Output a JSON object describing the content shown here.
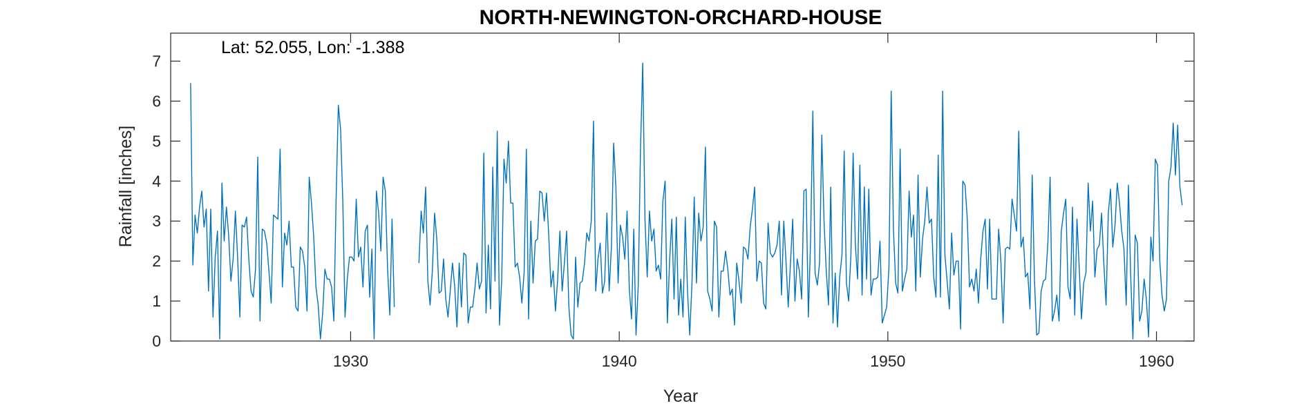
{
  "chart_data": {
    "type": "line",
    "title": "NORTH-NEWINGTON-ORCHARD-HOUSE",
    "xlabel": "Year",
    "ylabel": "Rainfall [inches]",
    "annotation": "Lat: 52.055, Lon: -1.388",
    "xlim": [
      1923.3,
      1961.4
    ],
    "ylim": [
      0,
      7.7
    ],
    "xticks": [
      1930,
      1940,
      1950,
      1960
    ],
    "yticks": [
      0,
      1,
      2,
      3,
      4,
      5,
      6,
      7
    ],
    "grid": false,
    "colors": {
      "line": "#0072BD",
      "axis": "#262626"
    },
    "series": [
      {
        "start": 1924.042,
        "step": 0.08333,
        "values": [
          6.45,
          1.9,
          3.15,
          2.7,
          3.35,
          3.75,
          2.85,
          3.3,
          1.25,
          3.3,
          0.6,
          2.1,
          2.75,
          0.05,
          3.95,
          2.5,
          3.35,
          2.65,
          1.5,
          2.05,
          3.25,
          2.1,
          0.6,
          2.9,
          2.85,
          3.1,
          2.05,
          1.25,
          1.1,
          1.8,
          4.6,
          0.5,
          2.8,
          2.75,
          2.45,
          1.75,
          0.95,
          3.15,
          3.1,
          3.05,
          4.8,
          1.35,
          2.7,
          2.4,
          3.0,
          1.85,
          1.85,
          0.85,
          0.75,
          2.35,
          2.25,
          1.85,
          0.75,
          4.1,
          3.45,
          2.6,
          1.35,
          0.9,
          0.05,
          0.7,
          1.8,
          1.55,
          1.55,
          1.35,
          0.5,
          3.55,
          5.9,
          5.3,
          3.5,
          0.6,
          1.55,
          2.1,
          2.1,
          2.0,
          3.55,
          2.1,
          2.35,
          1.35,
          2.75,
          2.9,
          1.1,
          2.3,
          0.05,
          3.75,
          3.2,
          2.25,
          4.1,
          3.75,
          1.8,
          0.65,
          3.05,
          0.85,
          null,
          null,
          null,
          null,
          null,
          null,
          null,
          null,
          null,
          null,
          1.95,
          3.25,
          2.7,
          3.85,
          1.5,
          0.9,
          1.75,
          3.2,
          2.55,
          1.2,
          1.25,
          2.05,
          1.05,
          0.6,
          1.25,
          1.95,
          1.35,
          0.35,
          1.95,
          0.85,
          2.2,
          2.15,
          0.45,
          0.85,
          0.85,
          1.3,
          1.95,
          1.3,
          1.5,
          4.7,
          0.7,
          2.4,
          0.8,
          4.35,
          1.5,
          5.25,
          0.4,
          1.55,
          4.55,
          3.95,
          5.0,
          3.45,
          3.45,
          1.85,
          1.95,
          1.6,
          0.95,
          1.7,
          4.8,
          0.55,
          3.0,
          1.45,
          2.5,
          2.55,
          3.75,
          3.7,
          3.0,
          3.7,
          2.65,
          1.35,
          1.75,
          0.75,
          1.55,
          2.75,
          1.25,
          1.95,
          2.75,
          0.85,
          0.15,
          0.05,
          2.1,
          0.85,
          1.45,
          1.5,
          1.95,
          2.7,
          2.5,
          3.0,
          5.5,
          1.25,
          2.05,
          2.45,
          1.2,
          1.5,
          3.2,
          1.25,
          2.35,
          4.95,
          3.85,
          1.45,
          2.9,
          2.6,
          2.05,
          3.25,
          1.3,
          0.55,
          2.8,
          0.15,
          1.4,
          4.8,
          6.95,
          3.05,
          1.6,
          3.25,
          2.5,
          2.8,
          1.75,
          1.9,
          1.55,
          3.5,
          4.0,
          0.45,
          2.0,
          3.05,
          1.05,
          3.1,
          0.65,
          1.55,
          0.6,
          3.1,
          1.25,
          0.15,
          1.45,
          3.6,
          1.45,
          3.2,
          2.5,
          2.85,
          4.85,
          1.25,
          1.05,
          0.75,
          3.0,
          2.85,
          0.6,
          1.75,
          1.75,
          2.25,
          1.8,
          1.15,
          1.3,
          0.4,
          1.95,
          1.5,
          0.95,
          2.35,
          2.3,
          2.05,
          2.85,
          3.3,
          3.85,
          1.5,
          2.0,
          1.95,
          0.95,
          0.8,
          2.95,
          2.2,
          2.1,
          2.2,
          2.4,
          3.0,
          1.15,
          3.0,
          2.0,
          0.85,
          1.95,
          3.05,
          1.0,
          2.05,
          1.75,
          1.05,
          3.75,
          3.8,
          0.6,
          2.55,
          5.75,
          1.7,
          1.4,
          1.95,
          5.15,
          3.0,
          1.75,
          0.9,
          3.85,
          0.45,
          1.7,
          0.35,
          1.6,
          2.15,
          4.75,
          1.45,
          1.0,
          2.15,
          4.7,
          2.4,
          1.55,
          4.4,
          1.15,
          3.85,
          1.55,
          3.8,
          1.15,
          1.55,
          1.55,
          1.6,
          2.5,
          0.45,
          0.65,
          0.85,
          1.85,
          6.25,
          2.8,
          1.45,
          1.2,
          4.8,
          1.25,
          1.55,
          1.8,
          3.75,
          2.6,
          3.15,
          1.25,
          4.15,
          1.6,
          2.55,
          3.0,
          3.85,
          2.95,
          3.05,
          1.6,
          1.1,
          4.65,
          1.1,
          6.25,
          2.15,
          1.5,
          0.8,
          2.7,
          1.65,
          2.0,
          2.0,
          0.3,
          4.0,
          3.9,
          3.05,
          1.35,
          1.55,
          1.25,
          1.8,
          0.95,
          2.05,
          2.75,
          3.05,
          1.3,
          3.05,
          1.05,
          1.05,
          1.05,
          2.8,
          2.0,
          0.45,
          2.3,
          2.35,
          2.3,
          3.55,
          3.15,
          2.75,
          5.25,
          2.35,
          2.6,
          1.6,
          1.7,
          0.8,
          4.15,
          1.55,
          0.15,
          0.2,
          1.25,
          1.5,
          1.55,
          2.45,
          4.1,
          0.5,
          0.75,
          1.15,
          0.5,
          2.75,
          3.2,
          3.55,
          1.35,
          1.05,
          3.35,
          0.65,
          3.05,
          1.85,
          0.55,
          1.45,
          1.7,
          3.95,
          2.75,
          3.5,
          1.6,
          2.3,
          2.4,
          3.2,
          1.95,
          0.9,
          3.2,
          3.8,
          2.35,
          2.9,
          3.95,
          3.45,
          2.75,
          2.3,
          0.9,
          3.9,
          1.65,
          0.05,
          2.65,
          2.45,
          0.5,
          0.75,
          1.55,
          1.05,
          0.1,
          2.6,
          2.0,
          4.55,
          4.4,
          2.0,
          1.15,
          0.75,
          1.05,
          4.0,
          4.35,
          5.45,
          4.15,
          5.4,
          3.85,
          3.4
        ]
      }
    ]
  }
}
